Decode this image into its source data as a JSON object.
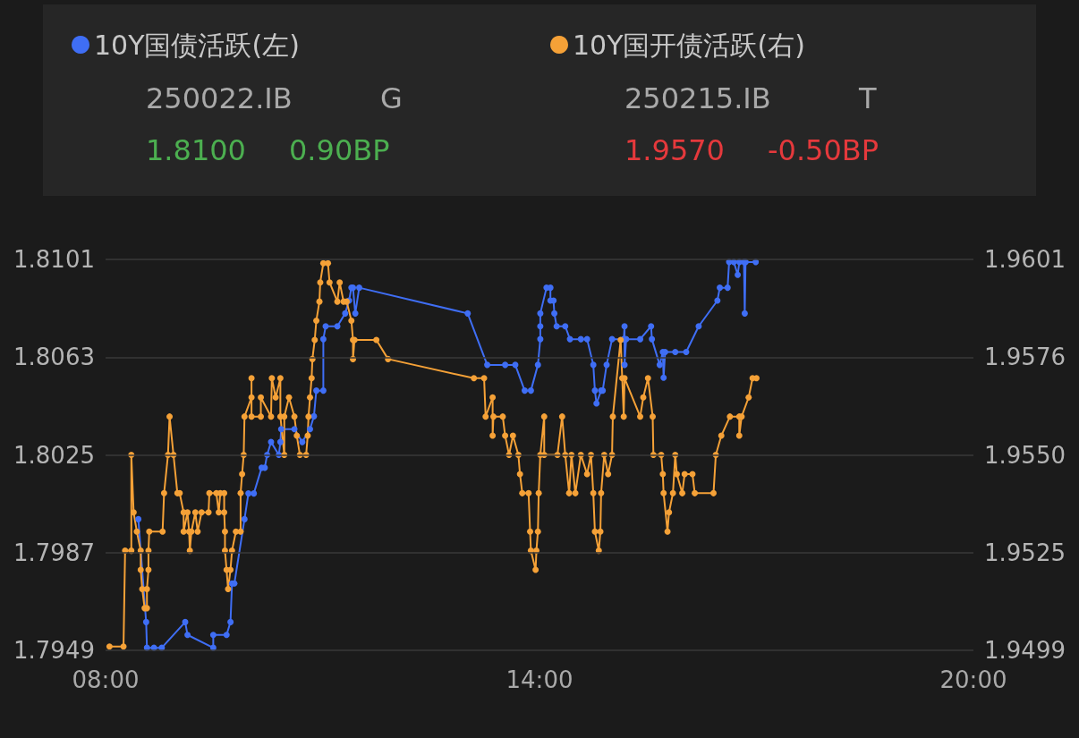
{
  "chart_data": {
    "type": "line",
    "series": [
      {
        "name": "10Y国债活跃(左)",
        "color": "#3f6ef5",
        "axis": "y",
        "x": [
          8.453,
          8.561,
          8.572,
          8.669,
          8.777,
          9.101,
          9.133,
          9.489,
          9.489,
          9.673,
          9.727,
          9.748,
          9.781,
          9.921,
          9.975,
          10.05,
          10.158,
          10.201,
          10.234,
          10.288,
          10.396,
          10.417,
          10.428,
          10.611,
          10.719,
          10.827,
          10.881,
          10.914,
          11.011,
          11.011,
          11.043,
          11.205,
          11.313,
          11.367,
          11.399,
          11.421,
          11.453,
          11.507,
          13.007,
          13.277,
          13.525,
          13.665,
          13.795,
          13.881,
          13.978,
          14.011,
          14.011,
          14.011,
          14.097,
          14.151,
          14.151,
          14.194,
          14.205,
          14.237,
          14.356,
          14.421,
          14.572,
          14.658,
          14.744,
          14.766,
          14.788,
          14.852,
          14.874,
          14.928,
          15.003,
          15.165,
          15.176,
          15.176,
          15.198,
          15.392,
          15.543,
          15.554,
          15.662,
          15.705,
          15.716,
          15.737,
          15.877,
          16.028,
          16.201,
          16.46,
          16.493,
          16.601,
          16.622,
          16.687,
          16.741,
          16.763,
          16.827,
          16.838,
          16.849,
          16.989
        ],
        "values": [
          1.8,
          1.796,
          1.795,
          1.795,
          1.795,
          1.796,
          1.7955,
          1.795,
          1.7955,
          1.7955,
          1.796,
          1.7975,
          1.7975,
          1.8,
          1.801,
          1.801,
          1.802,
          1.802,
          1.8025,
          1.803,
          1.8025,
          1.803,
          1.8035,
          1.8035,
          1.803,
          1.8035,
          1.804,
          1.805,
          1.805,
          1.807,
          1.8075,
          1.8075,
          1.808,
          1.8085,
          1.809,
          1.809,
          1.808,
          1.809,
          1.808,
          1.806,
          1.806,
          1.806,
          1.805,
          1.805,
          1.806,
          1.807,
          1.8075,
          1.808,
          1.809,
          1.809,
          1.8085,
          1.8085,
          1.808,
          1.8075,
          1.8075,
          1.807,
          1.807,
          1.807,
          1.806,
          1.805,
          1.8045,
          1.805,
          1.805,
          1.806,
          1.807,
          1.807,
          1.8075,
          1.806,
          1.807,
          1.807,
          1.8075,
          1.807,
          1.806,
          1.8065,
          1.8055,
          1.8065,
          1.8065,
          1.8065,
          1.8075,
          1.8085,
          1.809,
          1.809,
          1.81,
          1.81,
          1.8095,
          1.81,
          1.81,
          1.808,
          1.81,
          1.81
        ]
      },
      {
        "name": "10Y国开债活跃(右)",
        "color": "#f5a137",
        "axis": "y2",
        "x": [
          8.054,
          8.248,
          8.27,
          8.356,
          8.356,
          8.388,
          8.432,
          8.486,
          8.486,
          8.507,
          8.54,
          8.572,
          8.572,
          8.593,
          8.593,
          8.604,
          8.788,
          8.809,
          8.863,
          8.885,
          8.939,
          8.993,
          9.025,
          9.079,
          9.079,
          9.133,
          9.155,
          9.165,
          9.187,
          9.241,
          9.273,
          9.327,
          9.424,
          9.435,
          9.532,
          9.565,
          9.586,
          9.64,
          9.64,
          9.651,
          9.651,
          9.673,
          9.694,
          9.727,
          9.748,
          9.802,
          9.867,
          9.867,
          9.888,
          9.91,
          9.921,
          10.018,
          10.018,
          10.018,
          10.147,
          10.147,
          10.288,
          10.299,
          10.352,
          10.417,
          10.417,
          10.471,
          10.471,
          10.536,
          10.611,
          10.644,
          10.687,
          10.773,
          10.795,
          10.806,
          10.827,
          10.849,
          10.86,
          10.892,
          10.914,
          10.957,
          10.968,
          11.011,
          11.075,
          11.097,
          11.205,
          11.237,
          11.291,
          11.334,
          11.399,
          11.421,
          11.421,
          11.442,
          11.744,
          11.906,
          13.093,
          13.234,
          13.255,
          13.352,
          13.352,
          13.363,
          13.492,
          13.525,
          13.579,
          13.633,
          13.708,
          13.73,
          13.762,
          13.849,
          13.87,
          13.881,
          13.946,
          13.957,
          13.978,
          13.989,
          14.011,
          14.065,
          14.065,
          14.248,
          14.313,
          14.356,
          14.41,
          14.442,
          14.496,
          14.572,
          14.658,
          14.712,
          14.744,
          14.766,
          14.82,
          14.842,
          14.852,
          14.895,
          14.949,
          15.003,
          15.014,
          15.122,
          15.144,
          15.165,
          15.176,
          15.392,
          15.435,
          15.5,
          15.565,
          15.575,
          15.683,
          15.705,
          15.716,
          15.77,
          15.791,
          15.845,
          15.877,
          15.899,
          15.974,
          16.007,
          16.115,
          16.147,
          16.406,
          16.438,
          16.514,
          16.633,
          16.762,
          16.762,
          16.795,
          16.892,
          16.946,
          17.0
        ],
        "values": [
          1.95,
          1.95,
          1.9525,
          1.9525,
          1.955,
          1.9535,
          1.953,
          1.9525,
          1.952,
          1.9515,
          1.951,
          1.951,
          1.9515,
          1.952,
          1.9525,
          1.953,
          1.953,
          1.954,
          1.955,
          1.956,
          1.955,
          1.954,
          1.954,
          1.9535,
          1.953,
          1.9535,
          1.953,
          1.9525,
          1.953,
          1.9535,
          1.953,
          1.9535,
          1.9535,
          1.954,
          1.954,
          1.9535,
          1.954,
          1.954,
          1.9535,
          1.953,
          1.9525,
          1.952,
          1.9515,
          1.952,
          1.9525,
          1.953,
          1.953,
          1.954,
          1.9545,
          1.955,
          1.956,
          1.9565,
          1.957,
          1.956,
          1.956,
          1.9565,
          1.956,
          1.957,
          1.9565,
          1.957,
          1.956,
          1.955,
          1.956,
          1.9565,
          1.956,
          1.9555,
          1.955,
          1.955,
          1.9555,
          1.956,
          1.9565,
          1.957,
          1.9575,
          1.958,
          1.9585,
          1.959,
          1.9595,
          1.96,
          1.96,
          1.9595,
          1.959,
          1.9595,
          1.959,
          1.959,
          1.9585,
          1.958,
          1.9575,
          1.958,
          1.958,
          1.9575,
          1.957,
          1.957,
          1.956,
          1.9565,
          1.9555,
          1.956,
          1.956,
          1.9555,
          1.955,
          1.9555,
          1.955,
          1.9545,
          1.954,
          1.954,
          1.953,
          1.9525,
          1.952,
          1.9525,
          1.953,
          1.954,
          1.955,
          1.956,
          1.955,
          1.955,
          1.956,
          1.955,
          1.954,
          1.955,
          1.954,
          1.955,
          1.9545,
          1.955,
          1.954,
          1.953,
          1.9525,
          1.953,
          1.954,
          1.955,
          1.9545,
          1.955,
          1.956,
          1.958,
          1.957,
          1.956,
          1.957,
          1.956,
          1.9565,
          1.957,
          1.956,
          1.955,
          1.955,
          1.9545,
          1.954,
          1.953,
          1.9535,
          1.954,
          1.955,
          1.9545,
          1.954,
          1.9545,
          1.9545,
          1.954,
          1.954,
          1.955,
          1.9555,
          1.956,
          1.956,
          1.9555,
          1.956,
          1.9565,
          1.957,
          1.957
        ]
      }
    ],
    "xlim": [
      8,
      20
    ],
    "xticks": [
      {
        "value": 8,
        "label": "08:00"
      },
      {
        "value": 14,
        "label": "14:00"
      },
      {
        "value": 20,
        "label": "20:00"
      }
    ],
    "ylim": [
      1.7949,
      1.8101
    ],
    "yticks": [
      1.7949,
      1.7987,
      1.8025,
      1.8063,
      1.8101
    ],
    "y2lim": [
      1.9499,
      1.9601
    ],
    "y2ticks": [
      1.9499,
      {
        "value": 1.95245,
        "label": "1.9525"
      },
      {
        "value": 1.955,
        "label": "1.9550"
      },
      {
        "value": 1.95755,
        "label": "1.9576"
      },
      1.9601
    ],
    "grid": "y",
    "legend": "top",
    "marker": "circle",
    "annotations": [
      "250022.IB",
      "G",
      "1.8100",
      "0.90BP",
      "250215.IB",
      "T",
      "1.9570",
      "-0.50BP"
    ]
  }
}
